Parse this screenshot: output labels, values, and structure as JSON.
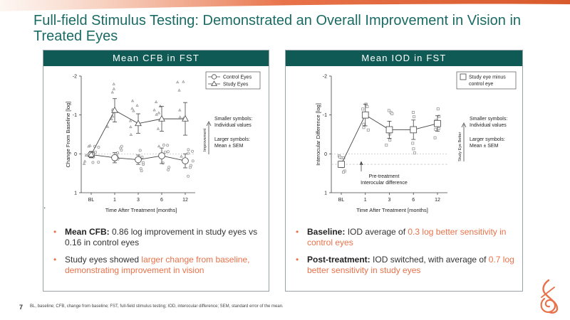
{
  "title": "Full-field Stimulus Testing: Demonstrated an Overall Improvement in Vision in Treated Eyes",
  "colors": {
    "accent": "#e8724a",
    "header": "#0f5a55",
    "title": "#1a6b64"
  },
  "left_panel": {
    "header": "Mean CFB in FST",
    "stray_mark": ".",
    "bullets": [
      {
        "bold": "Mean CFB:",
        "text": " 0.86 log improvement in study eyes vs 0.16 in control eyes",
        "highlight": "",
        "tail": ""
      },
      {
        "bold": "",
        "text": "Study eyes showed ",
        "highlight": "larger change from baseline, demonstrating improvement in vision",
        "tail": ""
      }
    ]
  },
  "right_panel": {
    "header": "Mean IOD in FST",
    "bullets": [
      {
        "bold": "Baseline:",
        "text": " IOD average of ",
        "highlight": "0.3 log better sensitivity in control eyes",
        "tail": ""
      },
      {
        "bold": "Post-treatment:",
        "text": " IOD switched, with average of ",
        "highlight": "0.7 log better sensitivity in study eyes",
        "tail": ""
      }
    ]
  },
  "chart_data": [
    {
      "type": "line",
      "title": "Mean CFB in FST",
      "xlabel": "Time After Treatment [months]",
      "ylabel": "Change From Baseline [log]",
      "categories": [
        "BL",
        "1",
        "3",
        "6",
        "12"
      ],
      "ylim": [
        1,
        -2
      ],
      "yticks": [
        "-2",
        "-1",
        "0",
        "1"
      ],
      "series": [
        {
          "name": "Control Eyes",
          "marker": "circle",
          "values": [
            0.02,
            0.1,
            0.15,
            0.05,
            0.18
          ],
          "sem": [
            0.06,
            0.13,
            0.12,
            0.2,
            0.18
          ]
        },
        {
          "name": "Study Eyes",
          "marker": "triangle",
          "values": [
            0.02,
            -1.12,
            -0.78,
            -0.9,
            -0.9
          ],
          "sem": [
            0.08,
            0.3,
            0.25,
            0.32,
            0.42
          ]
        }
      ],
      "annotations": [
        "Smaller symbols:",
        "Individual values",
        "Larger symbols:",
        "Mean ± SEM",
        "Improvement"
      ]
    },
    {
      "type": "line",
      "title": "Mean IOD in FST",
      "xlabel": "Time After Treatment [months]",
      "ylabel": "Interocular Difference [log]",
      "categories": [
        "BL",
        "1",
        "3",
        "6",
        "12"
      ],
      "ylim": [
        1,
        -2
      ],
      "yticks": [
        "-2",
        "-1",
        "0",
        "1"
      ],
      "series": [
        {
          "name": "Study eye minus control eye",
          "marker": "square",
          "values": [
            0.27,
            -1.0,
            -0.62,
            -0.62,
            -0.78
          ],
          "sem": [
            0.08,
            0.28,
            0.22,
            0.25,
            0.2
          ]
        }
      ],
      "annotations": [
        "Smaller symbols:",
        "Individual values",
        "Larger symbols:",
        "Mean ± SEM",
        "Study Eye Better",
        "Pre-treatment",
        "Interocular difference"
      ]
    }
  ],
  "footer": {
    "page_number": "7",
    "footnote": "BL, baseline; CFB, change from baseline; FST, full-field stimulus testing; IOD, interocular difference; SEM, standard error of the mean."
  }
}
